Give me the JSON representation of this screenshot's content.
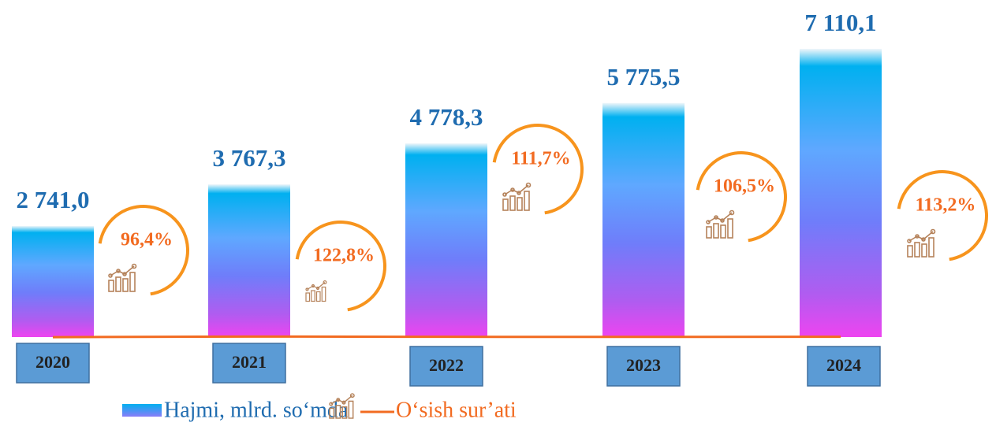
{
  "chart_data": {
    "type": "bar",
    "categories": [
      "2020",
      "2021",
      "2022",
      "2023",
      "2024"
    ],
    "series": [
      {
        "name": "Hajmi, mlrd. so‘mda",
        "color": "#00b0f0",
        "values": [
          2741.0,
          3767.3,
          4778.3,
          5775.5,
          7110.1
        ],
        "value_labels": [
          "2 741,0",
          "3 767,3",
          "4 778,3",
          "5 775,5",
          "7 110,1"
        ]
      },
      {
        "name": "O‘sish sur’ati",
        "color": "#f26b21",
        "axis": "y2",
        "values": [
          96.4,
          122.8,
          111.7,
          106.5,
          113.2
        ],
        "value_labels": [
          "96,4%",
          "122,8%",
          "111,7%",
          "106,5%",
          "113,2%"
        ]
      }
    ],
    "legend": "bottom"
  }
}
